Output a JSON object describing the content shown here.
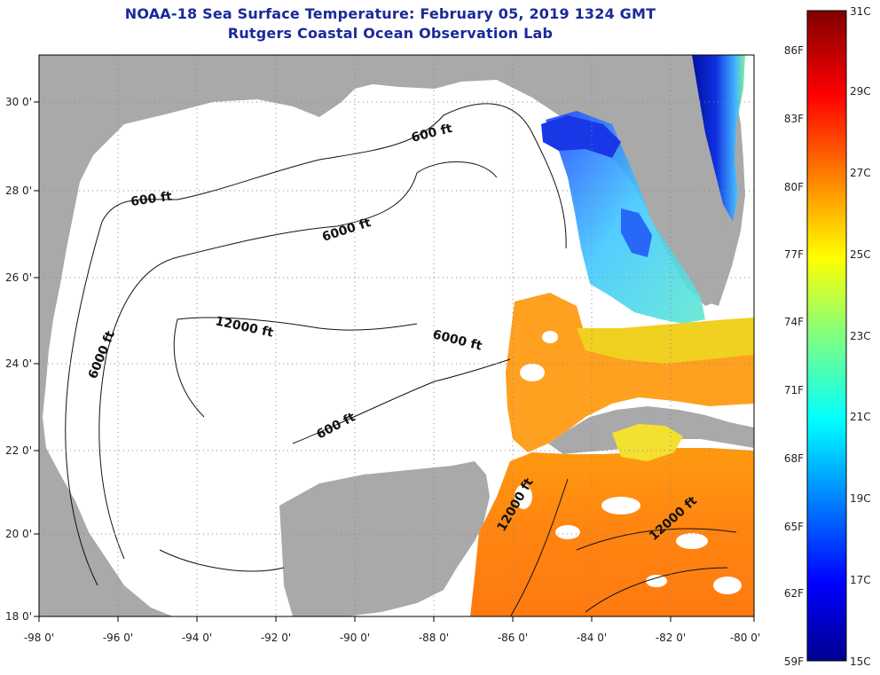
{
  "header": {
    "title": "NOAA-18 Sea Surface Temperature:  February 05, 2019 1324 GMT",
    "subtitle": "Rutgers Coastal Ocean Observation Lab"
  },
  "map": {
    "lon_labels": [
      "-98 0'",
      "-96 0'",
      "-94 0'",
      "-92 0'",
      "-90 0'",
      "-88 0'",
      "-86 0'",
      "-84 0'",
      "-82 0'",
      "-80 0'"
    ],
    "lat_labels": [
      "30 0'",
      "28 0'",
      "26 0'",
      "24 0'",
      "22 0'",
      "20 0'",
      "18 0'"
    ],
    "contour_labels": [
      {
        "text": "600 ft",
        "id": "c600-north"
      },
      {
        "text": "600 ft",
        "id": "c600-west"
      },
      {
        "text": "6000 ft",
        "id": "c6000-north"
      },
      {
        "text": "12000 ft",
        "id": "c12000-center"
      },
      {
        "text": "6000 ft",
        "id": "c6000-east"
      },
      {
        "text": "6000 ft",
        "id": "c6000-west"
      },
      {
        "text": "600 ft",
        "id": "c600-south"
      },
      {
        "text": "12000 ft",
        "id": "c12000-yucatan"
      },
      {
        "text": "12000 ft",
        "id": "c12000-caribbean"
      }
    ],
    "colors": {
      "land": "#a9a9a9",
      "no_data": "#ffffff",
      "grid": "#888888"
    }
  },
  "colorbar": {
    "fahrenheit_labels": [
      "86F",
      "83F",
      "80F",
      "77F",
      "74F",
      "71F",
      "68F",
      "65F",
      "62F",
      "59F"
    ],
    "celsius_labels": [
      "31C",
      "29C",
      "27C",
      "25C",
      "23C",
      "21C",
      "19C",
      "17C",
      "15C"
    ],
    "range_c": [
      15,
      31
    ],
    "colormap": "jet"
  }
}
